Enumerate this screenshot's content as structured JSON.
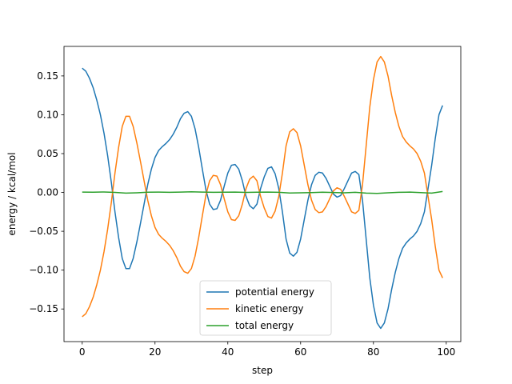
{
  "chart_data": {
    "type": "line",
    "xlabel": "step",
    "ylabel": "energy / kcal/mol",
    "xlim": [
      -5,
      104
    ],
    "ylim": [
      -0.192,
      0.188
    ],
    "xticks": [
      0,
      20,
      40,
      60,
      80,
      100
    ],
    "xtick_labels": [
      "0",
      "20",
      "40",
      "60",
      "80",
      "100"
    ],
    "yticks": [
      -0.15,
      -0.1,
      -0.05,
      0.0,
      0.05,
      0.1,
      0.15
    ],
    "ytick_labels": [
      "−0.15",
      "−0.10",
      "−0.05",
      "0.00",
      "0.05",
      "0.10",
      "0.15"
    ],
    "grid": false,
    "legend_position": "lower-center",
    "series": [
      {
        "name": "potential energy",
        "color": "#1f77b4",
        "points": [
          [
            0,
            0.16
          ],
          [
            1,
            0.156
          ],
          [
            2,
            0.147
          ],
          [
            3,
            0.135
          ],
          [
            4,
            0.119
          ],
          [
            5,
            0.1
          ],
          [
            6,
            0.076
          ],
          [
            7,
            0.047
          ],
          [
            8,
            0.013
          ],
          [
            9,
            -0.025
          ],
          [
            10,
            -0.058
          ],
          [
            11,
            -0.085
          ],
          [
            12,
            -0.098
          ],
          [
            13,
            -0.098
          ],
          [
            14,
            -0.085
          ],
          [
            15,
            -0.064
          ],
          [
            16,
            -0.04
          ],
          [
            17,
            -0.015
          ],
          [
            18,
            0.01
          ],
          [
            19,
            0.03
          ],
          [
            20,
            0.045
          ],
          [
            21,
            0.054
          ],
          [
            22,
            0.059
          ],
          [
            23,
            0.063
          ],
          [
            24,
            0.068
          ],
          [
            25,
            0.075
          ],
          [
            26,
            0.084
          ],
          [
            27,
            0.095
          ],
          [
            28,
            0.102
          ],
          [
            29,
            0.104
          ],
          [
            30,
            0.098
          ],
          [
            31,
            0.082
          ],
          [
            32,
            0.058
          ],
          [
            33,
            0.03
          ],
          [
            34,
            0.003
          ],
          [
            35,
            -0.015
          ],
          [
            36,
            -0.022
          ],
          [
            37,
            -0.021
          ],
          [
            38,
            -0.01
          ],
          [
            39,
            0.008
          ],
          [
            40,
            0.025
          ],
          [
            41,
            0.035
          ],
          [
            42,
            0.036
          ],
          [
            43,
            0.03
          ],
          [
            44,
            0.015
          ],
          [
            45,
            -0.005
          ],
          [
            46,
            -0.017
          ],
          [
            47,
            -0.021
          ],
          [
            48,
            -0.015
          ],
          [
            49,
            0.005
          ],
          [
            50,
            0.02
          ],
          [
            51,
            0.031
          ],
          [
            52,
            0.033
          ],
          [
            53,
            0.024
          ],
          [
            54,
            0.005
          ],
          [
            55,
            -0.025
          ],
          [
            56,
            -0.06
          ],
          [
            57,
            -0.078
          ],
          [
            58,
            -0.082
          ],
          [
            59,
            -0.077
          ],
          [
            60,
            -0.06
          ],
          [
            61,
            -0.035
          ],
          [
            62,
            -0.01
          ],
          [
            63,
            0.01
          ],
          [
            64,
            0.022
          ],
          [
            65,
            0.026
          ],
          [
            66,
            0.025
          ],
          [
            67,
            0.018
          ],
          [
            68,
            0.008
          ],
          [
            69,
            -0.002
          ],
          [
            70,
            -0.006
          ],
          [
            71,
            -0.004
          ],
          [
            72,
            0.005
          ],
          [
            73,
            0.015
          ],
          [
            74,
            0.025
          ],
          [
            75,
            0.027
          ],
          [
            76,
            0.023
          ],
          [
            77,
            -0.01
          ],
          [
            78,
            -0.06
          ],
          [
            79,
            -0.11
          ],
          [
            80,
            -0.145
          ],
          [
            81,
            -0.168
          ],
          [
            82,
            -0.175
          ],
          [
            83,
            -0.168
          ],
          [
            84,
            -0.15
          ],
          [
            85,
            -0.125
          ],
          [
            86,
            -0.103
          ],
          [
            87,
            -0.085
          ],
          [
            88,
            -0.072
          ],
          [
            89,
            -0.065
          ],
          [
            90,
            -0.06
          ],
          [
            91,
            -0.056
          ],
          [
            92,
            -0.05
          ],
          [
            93,
            -0.04
          ],
          [
            94,
            -0.025
          ],
          [
            95,
            0.005
          ],
          [
            96,
            0.035
          ],
          [
            97,
            0.07
          ],
          [
            98,
            0.1
          ],
          [
            99,
            0.112
          ]
        ]
      },
      {
        "name": "kinetic energy",
        "color": "#ff7f0e",
        "points": [
          [
            0,
            -0.16
          ],
          [
            1,
            -0.156
          ],
          [
            2,
            -0.147
          ],
          [
            3,
            -0.135
          ],
          [
            4,
            -0.119
          ],
          [
            5,
            -0.1
          ],
          [
            6,
            -0.076
          ],
          [
            7,
            -0.047
          ],
          [
            8,
            -0.013
          ],
          [
            9,
            0.025
          ],
          [
            10,
            0.058
          ],
          [
            11,
            0.085
          ],
          [
            12,
            0.098
          ],
          [
            13,
            0.098
          ],
          [
            14,
            0.085
          ],
          [
            15,
            0.064
          ],
          [
            16,
            0.04
          ],
          [
            17,
            0.015
          ],
          [
            18,
            -0.01
          ],
          [
            19,
            -0.03
          ],
          [
            20,
            -0.045
          ],
          [
            21,
            -0.054
          ],
          [
            22,
            -0.059
          ],
          [
            23,
            -0.063
          ],
          [
            24,
            -0.068
          ],
          [
            25,
            -0.075
          ],
          [
            26,
            -0.084
          ],
          [
            27,
            -0.095
          ],
          [
            28,
            -0.102
          ],
          [
            29,
            -0.104
          ],
          [
            30,
            -0.098
          ],
          [
            31,
            -0.082
          ],
          [
            32,
            -0.058
          ],
          [
            33,
            -0.03
          ],
          [
            34,
            -0.003
          ],
          [
            35,
            0.015
          ],
          [
            36,
            0.022
          ],
          [
            37,
            0.021
          ],
          [
            38,
            0.01
          ],
          [
            39,
            -0.008
          ],
          [
            40,
            -0.025
          ],
          [
            41,
            -0.035
          ],
          [
            42,
            -0.036
          ],
          [
            43,
            -0.03
          ],
          [
            44,
            -0.015
          ],
          [
            45,
            0.005
          ],
          [
            46,
            0.017
          ],
          [
            47,
            0.021
          ],
          [
            48,
            0.015
          ],
          [
            49,
            -0.005
          ],
          [
            50,
            -0.02
          ],
          [
            51,
            -0.031
          ],
          [
            52,
            -0.033
          ],
          [
            53,
            -0.024
          ],
          [
            54,
            -0.005
          ],
          [
            55,
            0.025
          ],
          [
            56,
            0.06
          ],
          [
            57,
            0.078
          ],
          [
            58,
            0.082
          ],
          [
            59,
            0.077
          ],
          [
            60,
            0.06
          ],
          [
            61,
            0.035
          ],
          [
            62,
            0.01
          ],
          [
            63,
            -0.01
          ],
          [
            64,
            -0.022
          ],
          [
            65,
            -0.026
          ],
          [
            66,
            -0.025
          ],
          [
            67,
            -0.018
          ],
          [
            68,
            -0.008
          ],
          [
            69,
            0.002
          ],
          [
            70,
            0.006
          ],
          [
            71,
            0.004
          ],
          [
            72,
            -0.005
          ],
          [
            73,
            -0.015
          ],
          [
            74,
            -0.025
          ],
          [
            75,
            -0.027
          ],
          [
            76,
            -0.023
          ],
          [
            77,
            0.01
          ],
          [
            78,
            0.06
          ],
          [
            79,
            0.11
          ],
          [
            80,
            0.145
          ],
          [
            81,
            0.168
          ],
          [
            82,
            0.175
          ],
          [
            83,
            0.168
          ],
          [
            84,
            0.15
          ],
          [
            85,
            0.125
          ],
          [
            86,
            0.103
          ],
          [
            87,
            0.085
          ],
          [
            88,
            0.072
          ],
          [
            89,
            0.065
          ],
          [
            90,
            0.06
          ],
          [
            91,
            0.056
          ],
          [
            92,
            0.05
          ],
          [
            93,
            0.04
          ],
          [
            94,
            0.025
          ],
          [
            95,
            -0.005
          ],
          [
            96,
            -0.035
          ],
          [
            97,
            -0.07
          ],
          [
            98,
            -0.1
          ],
          [
            99,
            -0.11
          ]
        ]
      },
      {
        "name": "total energy",
        "color": "#2ca02c",
        "points": [
          [
            0,
            0.0005
          ],
          [
            3,
            0.0003
          ],
          [
            6,
            0.0006
          ],
          [
            9,
            0.0001
          ],
          [
            12,
            -0.0008
          ],
          [
            15,
            -0.0004
          ],
          [
            18,
            0.0003
          ],
          [
            21,
            0.0004
          ],
          [
            24,
            0.0002
          ],
          [
            27,
            0.0004
          ],
          [
            30,
            0.0008
          ],
          [
            33,
            0.0005
          ],
          [
            36,
            0.0002
          ],
          [
            39,
            0.0003
          ],
          [
            42,
            0.0004
          ],
          [
            45,
            0.0001
          ],
          [
            48,
            0.0003
          ],
          [
            51,
            0.0005
          ],
          [
            54,
            0.0002
          ],
          [
            57,
            -0.0007
          ],
          [
            60,
            -0.0005
          ],
          [
            63,
            -0.0002
          ],
          [
            66,
            0.0003
          ],
          [
            69,
            -0.0001
          ],
          [
            72,
            -0.0004
          ],
          [
            75,
            0.0002
          ],
          [
            78,
            -0.0008
          ],
          [
            81,
            -0.0012
          ],
          [
            84,
            -0.0005
          ],
          [
            87,
            0.0002
          ],
          [
            90,
            0.0004
          ],
          [
            93,
            -0.0002
          ],
          [
            96,
            -0.0008
          ],
          [
            99,
            0.0012
          ]
        ]
      }
    ]
  }
}
